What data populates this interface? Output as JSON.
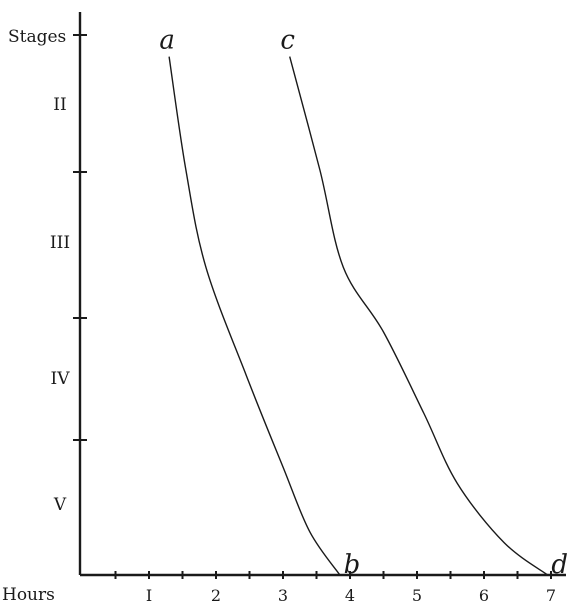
{
  "chart_data": {
    "type": "line",
    "xlabel": "Hours",
    "ylabel": "Stages",
    "xticks": [
      "I",
      "2",
      "3",
      "4",
      "5",
      "6",
      "7"
    ],
    "yticks": [
      "II",
      "III",
      "IV",
      "V"
    ],
    "series": [
      {
        "start_label": "a",
        "end_label": "b",
        "points": [
          [
            1.3,
            0.96
          ],
          [
            1.55,
            0.75
          ],
          [
            1.85,
            0.57
          ],
          [
            2.45,
            0.37
          ],
          [
            3.0,
            0.2
          ],
          [
            3.4,
            0.08
          ],
          [
            3.85,
            0.0
          ]
        ]
      },
      {
        "start_label": "c",
        "end_label": "d",
        "points": [
          [
            3.1,
            0.96
          ],
          [
            3.55,
            0.75
          ],
          [
            3.9,
            0.57
          ],
          [
            4.5,
            0.45
          ],
          [
            5.1,
            0.3
          ],
          [
            5.6,
            0.17
          ],
          [
            6.3,
            0.06
          ],
          [
            6.95,
            0.0
          ]
        ]
      }
    ],
    "grid": false
  }
}
